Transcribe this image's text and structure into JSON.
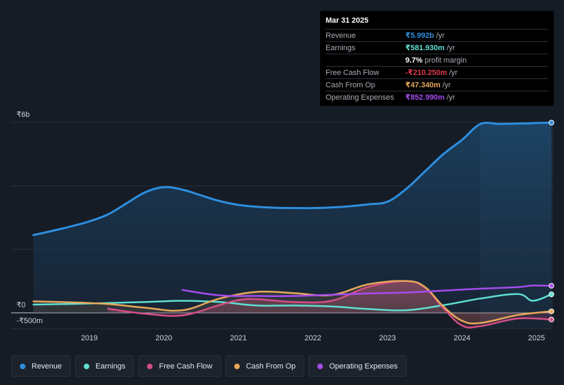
{
  "chart_data": {
    "type": "line",
    "currency": "₹",
    "y_axis": {
      "ylim": [
        -500,
        6000
      ],
      "top_label": "₹6b",
      "zero_label": "₹0",
      "bottom_label": "-₹500m"
    },
    "x_ticks": [
      "2019",
      "2020",
      "2021",
      "2022",
      "2023",
      "2024",
      "2025"
    ],
    "forecast_start": 2024.25,
    "series": [
      {
        "name": "Revenue",
        "color": "#2d8fe0",
        "fill": true,
        "x": [
          2018.25,
          2018.5,
          2018.75,
          2019.0,
          2019.25,
          2019.5,
          2019.75,
          2020.0,
          2020.25,
          2020.5,
          2020.75,
          2021.0,
          2021.25,
          2021.5,
          2021.75,
          2022.0,
          2022.25,
          2022.5,
          2022.75,
          2023.0,
          2023.25,
          2023.5,
          2023.75,
          2024.0,
          2024.25,
          2024.5,
          2024.75,
          2025.0,
          2025.2
        ],
        "values": [
          2450,
          2580,
          2720,
          2880,
          3100,
          3450,
          3800,
          3960,
          3880,
          3700,
          3520,
          3400,
          3340,
          3310,
          3300,
          3300,
          3320,
          3360,
          3420,
          3500,
          3900,
          4450,
          5000,
          5450,
          5950,
          5950,
          5960,
          5980,
          5992
        ]
      },
      {
        "name": "Earnings",
        "color": "#5fe0d4",
        "x": [
          2018.25,
          2018.75,
          2019.25,
          2019.75,
          2020.25,
          2020.75,
          2021.25,
          2021.75,
          2022.25,
          2022.75,
          2023.25,
          2023.75,
          2024.25,
          2024.75,
          2024.95,
          2025.2
        ],
        "values": [
          260,
          280,
          310,
          340,
          380,
          340,
          230,
          230,
          200,
          120,
          80,
          240,
          450,
          590,
          380,
          582
        ]
      },
      {
        "name": "Free Cash Flow",
        "color": "#d44e86",
        "x": [
          2019.25,
          2019.75,
          2020.25,
          2020.75,
          2021.0,
          2021.25,
          2021.75,
          2022.25,
          2022.75,
          2023.25,
          2023.5,
          2023.75,
          2024.0,
          2024.25,
          2024.75,
          2025.2
        ],
        "values": [
          130,
          -30,
          -80,
          250,
          400,
          430,
          340,
          380,
          820,
          1000,
          800,
          150,
          -400,
          -420,
          -180,
          -210
        ]
      },
      {
        "name": "Cash From Op",
        "color": "#e8a95a",
        "x": [
          2018.25,
          2018.75,
          2019.25,
          2019.75,
          2020.25,
          2020.75,
          2021.25,
          2021.75,
          2022.25,
          2022.75,
          2023.25,
          2023.5,
          2023.75,
          2024.0,
          2024.25,
          2024.75,
          2025.2
        ],
        "values": [
          360,
          330,
          280,
          160,
          80,
          450,
          660,
          620,
          560,
          900,
          1000,
          820,
          200,
          -250,
          -320,
          -70,
          47
        ]
      },
      {
        "name": "Operating Expenses",
        "color": "#a64cf0",
        "x": [
          2020.25,
          2020.75,
          2021.25,
          2021.75,
          2022.25,
          2022.75,
          2023.25,
          2023.75,
          2024.25,
          2024.75,
          2024.95,
          2025.2
        ],
        "values": [
          720,
          550,
          530,
          530,
          570,
          610,
          640,
          700,
          760,
          810,
          860,
          853
        ]
      }
    ]
  },
  "tooltip": {
    "date": "Mar 31 2025",
    "rows": [
      {
        "label": "Revenue",
        "value": "₹5.992b",
        "unit": "/yr",
        "color": "#2d8fe0"
      },
      {
        "label": "Earnings",
        "value": "₹581.930m",
        "unit": "/yr",
        "color": "#5fe0d4"
      },
      {
        "label": "",
        "value": "9.7%",
        "unit": "profit margin",
        "color": "#ffffff"
      },
      {
        "label": "Free Cash Flow",
        "value": "-₹210.250m",
        "unit": "/yr",
        "color": "#e03c4e"
      },
      {
        "label": "Cash From Op",
        "value": "₹47.340m",
        "unit": "/yr",
        "color": "#e8a95a"
      },
      {
        "label": "Operating Expenses",
        "value": "₹852.990m",
        "unit": "/yr",
        "color": "#a64cf0"
      }
    ]
  },
  "legend": [
    {
      "label": "Revenue",
      "color": "#2d8fe0"
    },
    {
      "label": "Earnings",
      "color": "#5fe0d4"
    },
    {
      "label": "Free Cash Flow",
      "color": "#d44e86"
    },
    {
      "label": "Cash From Op",
      "color": "#e8a95a"
    },
    {
      "label": "Operating Expenses",
      "color": "#a64cf0"
    }
  ]
}
